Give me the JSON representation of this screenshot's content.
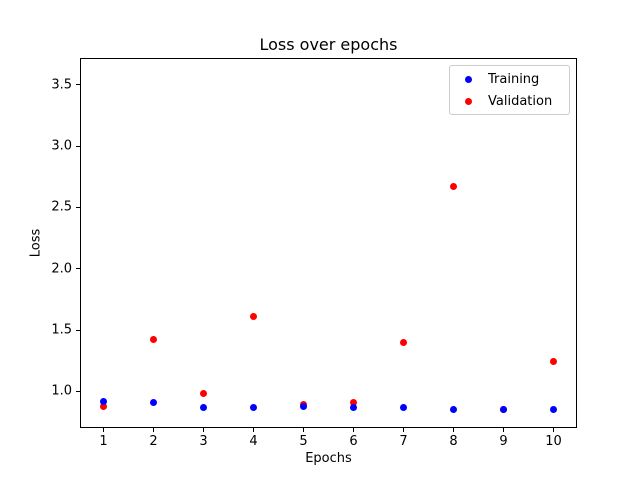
{
  "figure": {
    "background": "#ffffff"
  },
  "chart_data": {
    "type": "scatter",
    "title": "Loss over epochs",
    "xlabel": "Epochs",
    "ylabel": "Loss",
    "x": [
      1,
      2,
      3,
      4,
      5,
      6,
      7,
      8,
      9,
      10
    ],
    "series": [
      {
        "name": "Training",
        "color": "#0000ff",
        "values": [
          0.92,
          0.91,
          0.87,
          0.87,
          0.88,
          0.87,
          0.87,
          0.85,
          0.85,
          0.85
        ]
      },
      {
        "name": "Validation",
        "color": "#ff0000",
        "values": [
          0.88,
          1.42,
          0.98,
          1.61,
          0.89,
          0.91,
          1.4,
          2.67,
          0.85,
          1.24
        ]
      }
    ],
    "xlim": [
      0.55,
      10.45
    ],
    "ylim": [
      0.71,
      3.71
    ],
    "xticks": [
      1,
      2,
      3,
      4,
      5,
      6,
      7,
      8,
      9,
      10
    ],
    "yticks": [
      1.0,
      1.5,
      2.0,
      2.5,
      3.0,
      3.5
    ],
    "grid": false,
    "legend_position": "upper right",
    "marker": "point"
  }
}
